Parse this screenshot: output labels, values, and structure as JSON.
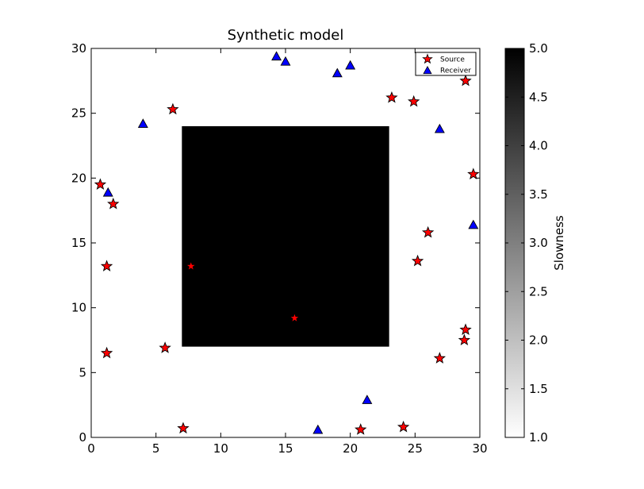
{
  "chart_data": {
    "type": "scatter",
    "title": "Synthetic model",
    "xlim": [
      0,
      30
    ],
    "ylim": [
      0,
      30
    ],
    "xticks": [
      "0",
      "5",
      "10",
      "15",
      "20",
      "25",
      "30"
    ],
    "yticks": [
      "0",
      "5",
      "10",
      "15",
      "20",
      "25",
      "30"
    ],
    "legend_position": "top-right",
    "background_model": {
      "type": "heatmap",
      "colormap": "gray_r",
      "background_value": 1.0,
      "anomaly": {
        "x": [
          7,
          23
        ],
        "y": [
          7,
          24
        ],
        "value": 5.0
      }
    },
    "colorbar": {
      "label": "Slowness",
      "range": [
        1.0,
        5.0
      ],
      "ticks": [
        "1.0",
        "1.5",
        "2.0",
        "2.5",
        "3.0",
        "3.5",
        "4.0",
        "4.5",
        "5.0"
      ]
    },
    "series": [
      {
        "name": "Source",
        "marker": "star",
        "color": "#ff0000",
        "points": [
          [
            6.3,
            25.3
          ],
          [
            23.2,
            26.2
          ],
          [
            24.9,
            25.9
          ],
          [
            28.9,
            27.5
          ],
          [
            0.7,
            19.5
          ],
          [
            1.7,
            18.0
          ],
          [
            29.5,
            20.3
          ],
          [
            1.2,
            13.2
          ],
          [
            7.7,
            13.2
          ],
          [
            26.0,
            15.8
          ],
          [
            25.2,
            13.6
          ],
          [
            15.7,
            9.2
          ],
          [
            28.9,
            8.3
          ],
          [
            28.8,
            7.5
          ],
          [
            1.2,
            6.5
          ],
          [
            5.7,
            6.9
          ],
          [
            26.9,
            6.1
          ],
          [
            7.1,
            0.7
          ],
          [
            20.8,
            0.6
          ],
          [
            24.1,
            0.8
          ]
        ]
      },
      {
        "name": "Receiver",
        "marker": "triangle",
        "color": "#0000ff",
        "points": [
          [
            14.3,
            29.4
          ],
          [
            15.0,
            29.0
          ],
          [
            19.0,
            28.1
          ],
          [
            20.0,
            28.7
          ],
          [
            4.0,
            24.2
          ],
          [
            26.9,
            23.8
          ],
          [
            1.3,
            18.9
          ],
          [
            29.5,
            16.4
          ],
          [
            21.3,
            2.9
          ],
          [
            17.5,
            0.6
          ]
        ]
      }
    ]
  }
}
